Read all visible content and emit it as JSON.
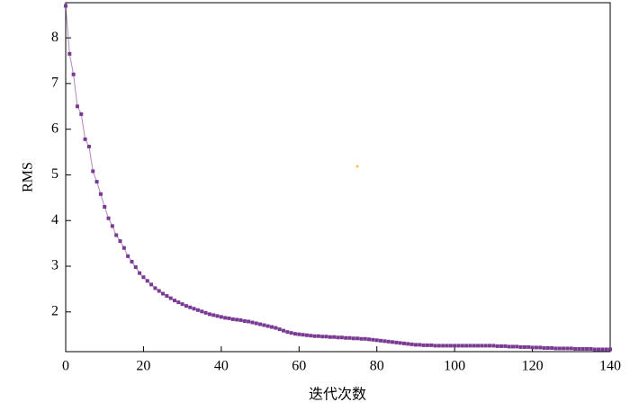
{
  "chart_data": {
    "type": "line",
    "xlabel": "迭代次数",
    "ylabel": "RMS",
    "xlim": [
      0,
      140
    ],
    "xticks": [
      0,
      20,
      40,
      60,
      80,
      100,
      120,
      140
    ],
    "ylim": [
      1.13,
      8.77
    ],
    "yticks": [
      2,
      3,
      4,
      5,
      6,
      7,
      8
    ],
    "x": [
      0,
      1,
      2,
      3,
      4,
      5,
      6,
      7,
      8,
      9,
      10,
      11,
      12,
      13,
      14,
      15,
      16,
      17,
      18,
      19,
      20,
      21,
      22,
      23,
      24,
      25,
      26,
      27,
      28,
      29,
      30,
      31,
      32,
      33,
      34,
      35,
      36,
      37,
      38,
      39,
      40,
      41,
      42,
      43,
      44,
      45,
      46,
      47,
      48,
      49,
      50,
      51,
      52,
      53,
      54,
      55,
      56,
      57,
      58,
      59,
      60,
      61,
      62,
      63,
      64,
      65,
      66,
      67,
      68,
      69,
      70,
      71,
      72,
      73,
      74,
      75,
      76,
      77,
      78,
      79,
      80,
      81,
      82,
      83,
      84,
      85,
      86,
      87,
      88,
      89,
      90,
      91,
      92,
      93,
      94,
      95,
      96,
      97,
      98,
      99,
      100,
      101,
      102,
      103,
      104,
      105,
      106,
      107,
      108,
      109,
      110,
      111,
      112,
      113,
      114,
      115,
      116,
      117,
      118,
      119,
      120,
      121,
      122,
      123,
      124,
      125,
      126,
      127,
      128,
      129,
      130,
      131,
      132,
      133,
      134,
      135,
      136,
      137,
      138,
      139,
      140
    ],
    "series": [
      {
        "color": "#7a3a94",
        "values": [
          8.7,
          7.65,
          7.2,
          6.5,
          6.33,
          5.78,
          5.62,
          5.08,
          4.85,
          4.58,
          4.3,
          4.05,
          3.88,
          3.68,
          3.55,
          3.4,
          3.22,
          3.1,
          2.98,
          2.85,
          2.76,
          2.68,
          2.6,
          2.52,
          2.46,
          2.4,
          2.35,
          2.3,
          2.25,
          2.21,
          2.17,
          2.13,
          2.1,
          2.07,
          2.04,
          2.01,
          1.98,
          1.95,
          1.93,
          1.91,
          1.89,
          1.87,
          1.86,
          1.84,
          1.83,
          1.82,
          1.8,
          1.79,
          1.77,
          1.75,
          1.73,
          1.71,
          1.69,
          1.67,
          1.65,
          1.62,
          1.59,
          1.56,
          1.54,
          1.52,
          1.51,
          1.5,
          1.49,
          1.48,
          1.47,
          1.47,
          1.46,
          1.46,
          1.45,
          1.45,
          1.44,
          1.44,
          1.43,
          1.43,
          1.42,
          1.42,
          1.41,
          1.41,
          1.4,
          1.39,
          1.38,
          1.37,
          1.36,
          1.35,
          1.34,
          1.33,
          1.32,
          1.31,
          1.3,
          1.29,
          1.28,
          1.28,
          1.27,
          1.27,
          1.27,
          1.26,
          1.26,
          1.26,
          1.26,
          1.26,
          1.26,
          1.26,
          1.26,
          1.26,
          1.26,
          1.26,
          1.26,
          1.26,
          1.26,
          1.26,
          1.26,
          1.25,
          1.25,
          1.25,
          1.24,
          1.24,
          1.24,
          1.23,
          1.23,
          1.23,
          1.22,
          1.22,
          1.22,
          1.21,
          1.21,
          1.21,
          1.2,
          1.2,
          1.2,
          1.2,
          1.2,
          1.19,
          1.19,
          1.19,
          1.19,
          1.19,
          1.18,
          1.18,
          1.18,
          1.18,
          1.18
        ]
      }
    ]
  }
}
